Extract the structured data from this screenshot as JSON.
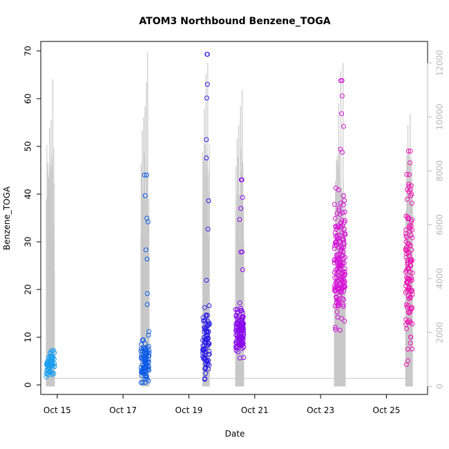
{
  "chart_data": {
    "type": "scatter",
    "title": "ATOM3 Northbound Benzene_TOGA",
    "xlabel": "Date",
    "ylabel": "Benzene_TOGA",
    "xlim": [
      "2017-10-14 12:00",
      "2017-10-26 06:00"
    ],
    "ylim": [
      -2,
      72
    ],
    "y2lim": [
      -300,
      12800
    ],
    "x_ticks": [
      {
        "date": "2017-10-15 00:00",
        "label": "Oct 15"
      },
      {
        "date": "2017-10-17 00:00",
        "label": "Oct 17"
      },
      {
        "date": "2017-10-19 00:00",
        "label": "Oct 19"
      },
      {
        "date": "2017-10-21 00:00",
        "label": "Oct 21"
      },
      {
        "date": "2017-10-23 00:00",
        "label": "Oct 23"
      },
      {
        "date": "2017-10-25 00:00",
        "label": "Oct 25"
      }
    ],
    "y_ticks": [
      0,
      10,
      20,
      30,
      40,
      50,
      60,
      70
    ],
    "y2_ticks": [
      0,
      2000,
      4000,
      6000,
      8000,
      10000,
      12000
    ],
    "grid": false,
    "legend": "none",
    "marker": "open-circle",
    "flights": [
      {
        "start": "2017-10-14 16:00",
        "end": "2017-10-14 22:00",
        "color": "#1a9ff0",
        "y_min": 0.3,
        "y_max": 7.2,
        "y_center": 4.0,
        "y_spread": 1.6,
        "n_points": 45,
        "alt_peaks": [
          5800,
          9600,
          9900,
          11400
        ]
      },
      {
        "start": "2017-10-17 13:00",
        "end": "2017-10-17 19:00",
        "color": "#0c5ce8",
        "y_min": 0.5,
        "y_max": 44.0,
        "y_center": 5.0,
        "y_spread": 3.5,
        "n_points": 90,
        "alt_peaks": [
          9500,
          10000,
          10400,
          11300,
          12400
        ]
      },
      {
        "start": "2017-10-19 10:00",
        "end": "2017-10-19 15:00",
        "color": "#2a1ae8",
        "y_min": 0.5,
        "y_max": 69.3,
        "y_center": 9.0,
        "y_spread": 5.0,
        "n_points": 80,
        "alt_peaks": [
          10300,
          11600,
          12000
        ]
      },
      {
        "start": "2017-10-20 10:00",
        "end": "2017-10-20 16:00",
        "color": "#8a0aee",
        "y_min": 0.3,
        "y_max": 43.0,
        "y_center": 11.0,
        "y_spread": 3.5,
        "n_points": 110,
        "alt_peaks": [
          9200,
          9700,
          10400,
          11000
        ]
      },
      {
        "start": "2017-10-23 10:00",
        "end": "2017-10-23 18:00",
        "color": "#d80fd8",
        "y_min": 0.8,
        "y_max": 63.8,
        "y_center": 25.0,
        "y_spread": 9.0,
        "n_points": 170,
        "alt_peaks": [
          8400,
          10500,
          11700,
          12000
        ]
      },
      {
        "start": "2017-10-25 14:00",
        "end": "2017-10-25 19:00",
        "color": "#f012b4",
        "y_min": 0.3,
        "y_max": 49.0,
        "y_center": 25.0,
        "y_spread": 12.0,
        "n_points": 110,
        "alt_peaks": [
          9700,
          10100
        ]
      }
    ],
    "altitude_series": {
      "name": "",
      "color": "#c8c8c8",
      "axis": "right"
    }
  }
}
